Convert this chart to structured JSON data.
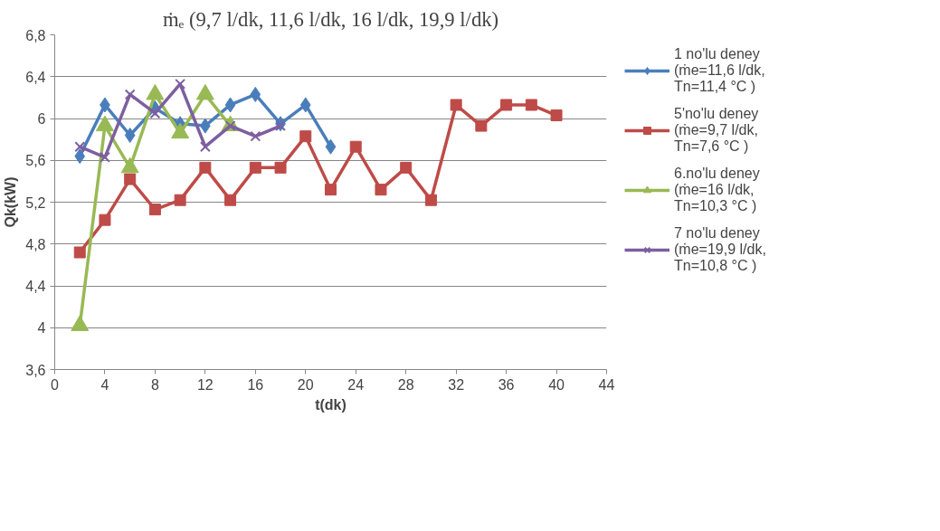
{
  "chart_data": {
    "type": "line",
    "title": "ṁₑ (9,7 l/dk, 11,6 l/dk, 16 l/dk, 19,9 l/dk)",
    "xlabel": "t(dk)",
    "ylabel": "Qk(kW)",
    "xlim": [
      0,
      44
    ],
    "xticks": [
      0,
      4,
      8,
      12,
      16,
      20,
      24,
      28,
      32,
      36,
      40,
      44
    ],
    "ylim": [
      3.6,
      6.8
    ],
    "yticks": [
      {
        "value": 3.6,
        "label": "3,6"
      },
      4,
      {
        "value": 4.4,
        "label": "4,4"
      },
      {
        "value": 4.8,
        "label": "4,8"
      },
      {
        "value": 5.2,
        "label": "5,2"
      },
      {
        "value": 5.6,
        "label": "5,6"
      },
      6,
      {
        "value": 6.4,
        "label": "6,4"
      },
      {
        "value": 6.8,
        "label": "6,8"
      }
    ],
    "grid": "y",
    "legend": "right",
    "series": [
      {
        "name": "1 no'lu deney (ṁe=11,6 l/dk, Tn=11,4 °C )",
        "color": "#4a7ebb",
        "marker": "diamond",
        "x": [
          2,
          4,
          6,
          8,
          10,
          12,
          14,
          16,
          18,
          20,
          22
        ],
        "values": [
          5.64,
          6.13,
          5.84,
          6.1,
          5.95,
          5.93,
          6.13,
          6.23,
          5.95,
          6.13,
          5.73
        ]
      },
      {
        "name": "5'no'lu deney (ṁe=9,7 l/dk, Tn=7,6 °C )",
        "color": "#be4b48",
        "marker": "square",
        "x": [
          2,
          4,
          6,
          8,
          10,
          12,
          14,
          16,
          18,
          20,
          22,
          24,
          26,
          28,
          30,
          32,
          34,
          36,
          38,
          40
        ],
        "values": [
          4.72,
          5.03,
          5.42,
          5.13,
          5.22,
          5.53,
          5.22,
          5.53,
          5.53,
          5.83,
          5.32,
          5.73,
          5.32,
          5.53,
          5.22,
          6.13,
          5.93,
          6.13,
          6.13,
          6.03
        ]
      },
      {
        "name": "6.no'lu deney (ṁe=16 l/dk, Tn=10,3 °C )",
        "color": "#98b954",
        "marker": "triangle",
        "x": [
          2,
          4,
          6,
          8,
          10,
          12,
          14
        ],
        "values": [
          4.02,
          5.93,
          5.53,
          6.23,
          5.86,
          6.23,
          5.93
        ]
      },
      {
        "name": "7 no'lu deney (ṁe=19,9 l/dk, Tn=10,8 °C )",
        "color": "#7d5fa0",
        "marker": "cross",
        "x": [
          2,
          4,
          6,
          8,
          10,
          12,
          14,
          16,
          18
        ],
        "values": [
          5.73,
          5.63,
          6.23,
          6.05,
          6.33,
          5.73,
          5.93,
          5.83,
          5.93
        ]
      }
    ]
  }
}
